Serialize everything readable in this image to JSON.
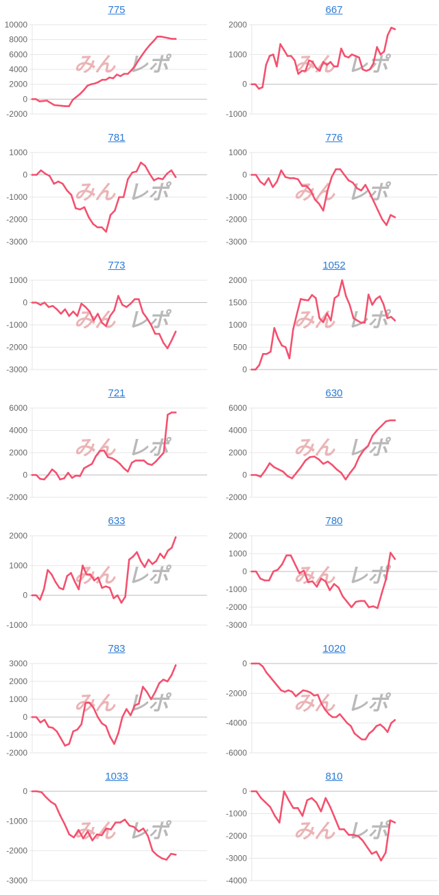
{
  "watermark": {
    "pink": "みん",
    "gray": "レポ"
  },
  "colors": {
    "line": "#f4506e",
    "grid": "#e6e6e6",
    "zero_line": "#bdbdbd",
    "tick_text": "#666666",
    "title_link": "#2a7ad4",
    "watermark_pink": "#ebb4b6",
    "watermark_gray": "#b9b9b9"
  },
  "chart_data": [
    {
      "type": "line",
      "title": "775",
      "yticks": [
        -2000,
        0,
        2000,
        4000,
        6000,
        8000,
        10000
      ],
      "ylim": [
        -2000,
        10000
      ],
      "grid": true,
      "values": [
        0,
        0,
        -300,
        -250,
        -200,
        -500,
        -800,
        -850,
        -900,
        -950,
        -950,
        -100,
        300,
        700,
        1200,
        1800,
        2000,
        2100,
        2300,
        2600,
        2600,
        2900,
        2800,
        3300,
        3100,
        3400,
        3400,
        3900,
        4500,
        5300,
        6000,
        6700,
        7300,
        7800,
        8400,
        8400,
        8300,
        8200,
        8100,
        8100
      ]
    },
    {
      "type": "line",
      "title": "667",
      "yticks": [
        -1000,
        0,
        1000,
        2000
      ],
      "ylim": [
        -1000,
        2000
      ],
      "grid": true,
      "values": [
        0,
        0,
        -150,
        -100,
        650,
        950,
        1000,
        600,
        1350,
        1150,
        950,
        950,
        800,
        350,
        450,
        450,
        800,
        750,
        550,
        450,
        750,
        650,
        750,
        600,
        600,
        1200,
        950,
        900,
        1000,
        950,
        900,
        500,
        450,
        500,
        700,
        1250,
        1000,
        1100,
        1650,
        1900,
        1850
      ]
    },
    {
      "type": "line",
      "title": "781",
      "yticks": [
        -3000,
        -2000,
        -1000,
        0,
        1000
      ],
      "ylim": [
        -3000,
        1000
      ],
      "grid": true,
      "values": [
        0,
        0,
        200,
        50,
        -50,
        -400,
        -300,
        -400,
        -700,
        -900,
        -1500,
        -1550,
        -1450,
        -1900,
        -2200,
        -2350,
        -2350,
        -2550,
        -1800,
        -1600,
        -1000,
        -1000,
        -200,
        100,
        150,
        550,
        400,
        50,
        -250,
        -150,
        -200,
        50,
        200,
        -100
      ]
    },
    {
      "type": "line",
      "title": "776",
      "yticks": [
        -3000,
        -2000,
        -1000,
        0,
        1000
      ],
      "ylim": [
        -3000,
        1000
      ],
      "grid": true,
      "values": [
        0,
        0,
        -300,
        -450,
        -150,
        -550,
        -300,
        200,
        -100,
        -150,
        -150,
        -200,
        -500,
        -500,
        -700,
        -1100,
        -1300,
        -1600,
        -700,
        -100,
        250,
        250,
        0,
        -250,
        -350,
        -600,
        -700,
        -450,
        -800,
        -1200,
        -1600,
        -2000,
        -2250,
        -1800,
        -1900
      ]
    },
    {
      "type": "line",
      "title": "773",
      "yticks": [
        -3000,
        -2000,
        -1000,
        0,
        1000
      ],
      "ylim": [
        -3000,
        1000
      ],
      "grid": true,
      "values": [
        0,
        0,
        -100,
        0,
        -200,
        -150,
        -300,
        -500,
        -300,
        -600,
        -400,
        -600,
        -50,
        -200,
        -400,
        -800,
        -500,
        -900,
        -1050,
        -600,
        -350,
        300,
        -100,
        -200,
        -50,
        150,
        150,
        -450,
        -700,
        -1000,
        -1400,
        -1400,
        -1800,
        -2050,
        -1700,
        -1300
      ]
    },
    {
      "type": "line",
      "title": "1052",
      "yticks": [
        0,
        500,
        1000,
        1500,
        2000
      ],
      "ylim": [
        0,
        2000
      ],
      "grid": true,
      "values": [
        0,
        0,
        100,
        350,
        350,
        400,
        930,
        700,
        540,
        500,
        250,
        900,
        1250,
        1580,
        1560,
        1550,
        1670,
        1600,
        1150,
        1060,
        1260,
        1100,
        1600,
        1660,
        2000,
        1650,
        1450,
        1150,
        1100,
        1050,
        1050,
        1680,
        1450,
        1580,
        1640,
        1460,
        1150,
        1180,
        1100
      ]
    },
    {
      "type": "line",
      "title": "721",
      "yticks": [
        -2000,
        0,
        2000,
        4000,
        6000
      ],
      "ylim": [
        -2000,
        6000
      ],
      "grid": true,
      "values": [
        0,
        0,
        -350,
        -400,
        0,
        500,
        200,
        -400,
        -300,
        200,
        -250,
        -50,
        -100,
        600,
        800,
        1000,
        1700,
        2150,
        2200,
        1600,
        1500,
        1300,
        1000,
        600,
        300,
        1100,
        1300,
        1300,
        1300,
        1000,
        900,
        1200,
        1600,
        2000,
        5400,
        5600,
        5600
      ]
    },
    {
      "type": "line",
      "title": "630",
      "yticks": [
        -2000,
        0,
        2000,
        4000,
        6000
      ],
      "ylim": [
        -2000,
        6000
      ],
      "grid": true,
      "values": [
        0,
        0,
        -150,
        400,
        1050,
        700,
        500,
        300,
        -100,
        -300,
        200,
        700,
        1300,
        1600,
        1650,
        1400,
        1000,
        1200,
        900,
        500,
        200,
        -400,
        200,
        700,
        1600,
        2200,
        2600,
        3500,
        4000,
        4400,
        4800,
        4900,
        4900
      ]
    },
    {
      "type": "line",
      "title": "633",
      "yticks": [
        -1000,
        0,
        1000,
        2000
      ],
      "ylim": [
        -1000,
        2000
      ],
      "grid": true,
      "values": [
        0,
        0,
        -150,
        200,
        850,
        700,
        450,
        250,
        200,
        650,
        750,
        450,
        200,
        1000,
        700,
        700,
        500,
        600,
        250,
        300,
        250,
        -100,
        0,
        -250,
        -50,
        1200,
        1300,
        1450,
        1150,
        950,
        1200,
        1050,
        1150,
        1400,
        1250,
        1500,
        1600,
        1950
      ]
    },
    {
      "type": "line",
      "title": "780",
      "yticks": [
        -3000,
        -2000,
        -1000,
        0,
        1000,
        2000
      ],
      "ylim": [
        -3000,
        2000
      ],
      "grid": true,
      "values": [
        0,
        0,
        -400,
        -500,
        -500,
        0,
        100,
        400,
        900,
        900,
        400,
        -100,
        50,
        -600,
        -550,
        -850,
        -400,
        -550,
        -1050,
        -700,
        -900,
        -1400,
        -1700,
        -2000,
        -1700,
        -1650,
        -1650,
        -2000,
        -1950,
        -2050,
        -1200,
        -400,
        1050,
        700
      ]
    },
    {
      "type": "line",
      "title": "783",
      "yticks": [
        -2000,
        -1000,
        0,
        1000,
        2000,
        3000
      ],
      "ylim": [
        -2000,
        3000
      ],
      "grid": true,
      "values": [
        0,
        0,
        -300,
        -150,
        -550,
        -600,
        -800,
        -1200,
        -1600,
        -1500,
        -800,
        -700,
        -400,
        800,
        800,
        500,
        0,
        -350,
        -500,
        -1100,
        -1500,
        -900,
        0,
        450,
        100,
        650,
        750,
        1700,
        1400,
        1000,
        1400,
        1900,
        2100,
        2000,
        2350,
        2900
      ]
    },
    {
      "type": "line",
      "title": "1020",
      "yticks": [
        -6000,
        -4000,
        -2000,
        0
      ],
      "ylim": [
        -6000,
        0
      ],
      "grid": true,
      "values": [
        0,
        0,
        0,
        -200,
        -600,
        -900,
        -1200,
        -1500,
        -1800,
        -1900,
        -1800,
        -1900,
        -2200,
        -2000,
        -1800,
        -1850,
        -1950,
        -2150,
        -2100,
        -2700,
        -3100,
        -3400,
        -3600,
        -3600,
        -3400,
        -3700,
        -4000,
        -4200,
        -4700,
        -4900,
        -5100,
        -5100,
        -4700,
        -4500,
        -4200,
        -4100,
        -4300,
        -4600,
        -4000,
        -3800
      ]
    },
    {
      "type": "line",
      "title": "1033",
      "yticks": [
        -3000,
        -2000,
        -1000,
        0
      ],
      "ylim": [
        -3000,
        0
      ],
      "grid": true,
      "values": [
        0,
        0,
        -30,
        -200,
        -350,
        -450,
        -800,
        -1100,
        -1450,
        -1550,
        -1300,
        -1580,
        -1350,
        -1650,
        -1450,
        -1480,
        -1250,
        -1280,
        -1050,
        -1050,
        -950,
        -1150,
        -1200,
        -1350,
        -1250,
        -1500,
        -2000,
        -2150,
        -2250,
        -2300,
        -2100,
        -2130
      ]
    },
    {
      "type": "line",
      "title": "810",
      "yticks": [
        -4000,
        -3000,
        -2000,
        -1000,
        0
      ],
      "ylim": [
        -4000,
        0
      ],
      "grid": true,
      "values": [
        0,
        0,
        -300,
        -500,
        -700,
        -1100,
        -1400,
        0,
        -400,
        -750,
        -750,
        -1100,
        -400,
        -300,
        -500,
        -900,
        -300,
        -700,
        -1200,
        -1700,
        -1700,
        -1950,
        -1950,
        -2000,
        -2200,
        -2500,
        -2800,
        -2700,
        -3100,
        -2750,
        -1300,
        -1400
      ]
    }
  ]
}
